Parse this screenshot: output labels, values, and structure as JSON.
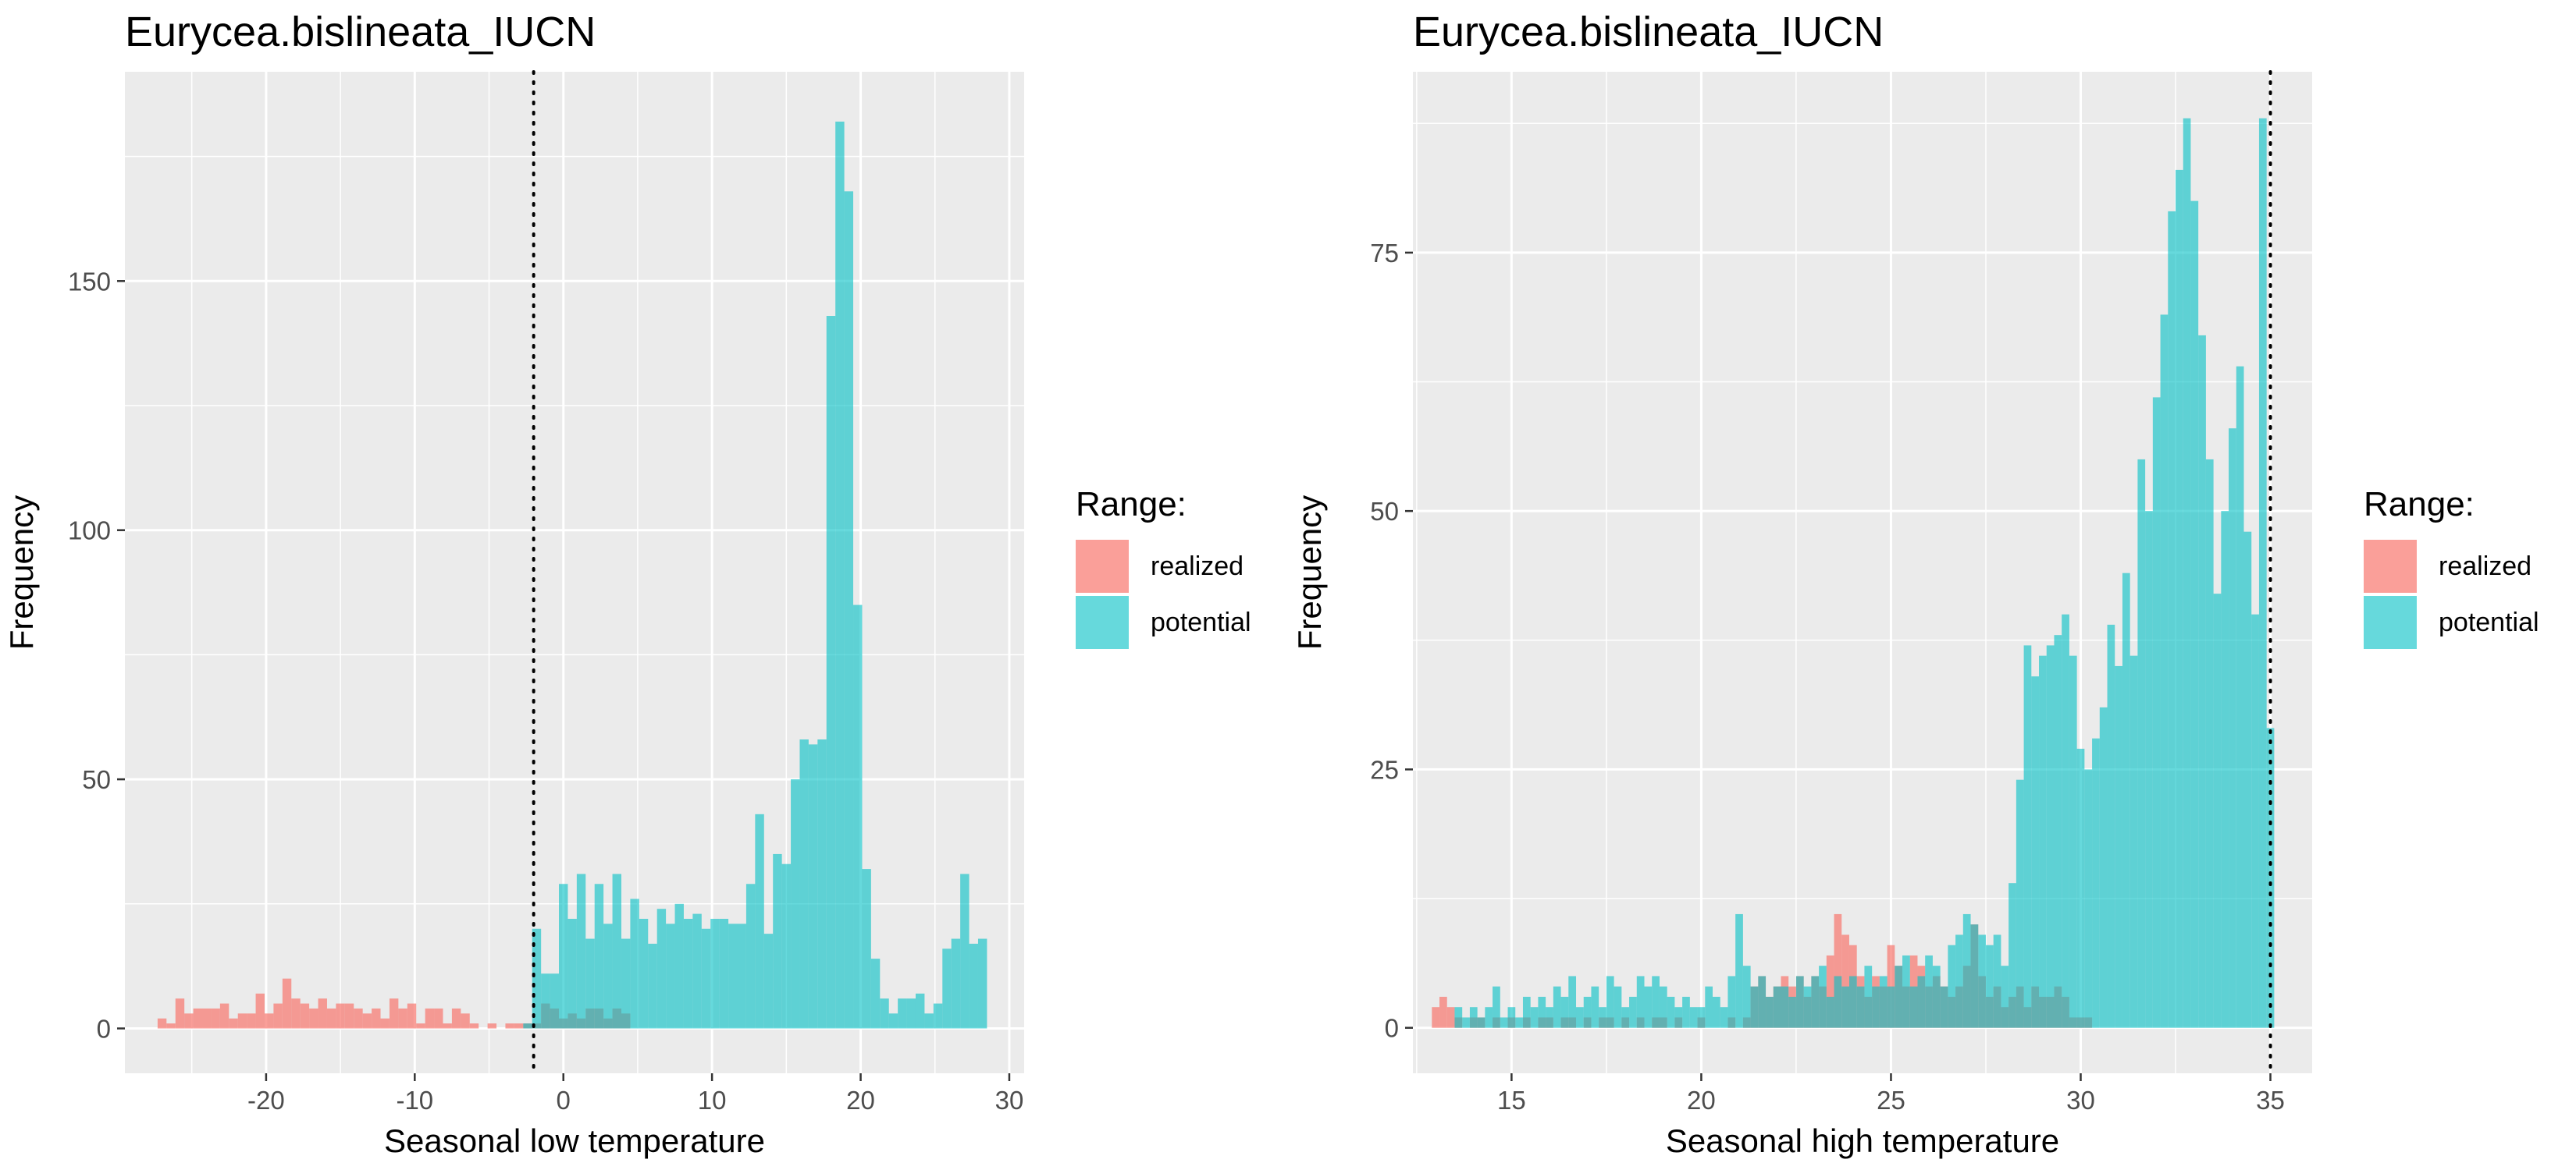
{
  "legend_title": "Range:",
  "colors": {
    "realized": "#F8766D",
    "potential": "#00BFC4",
    "panel_background": "#EBEBEB",
    "grid": "#FFFFFF"
  },
  "chart_data": [
    {
      "type": "bar",
      "title": "Eurycea.bislineata_IUCN",
      "xlabel": "Seasonal low temperature",
      "ylabel": "Frequency",
      "xlim": [
        -29.5,
        31.0
      ],
      "ylim": [
        -9,
        192
      ],
      "xticks": [
        -20,
        -10,
        0,
        10,
        20,
        30
      ],
      "yticks": [
        0,
        50,
        100,
        150
      ],
      "grid": true,
      "legend_position": "right",
      "reference_line_x": -2,
      "bin_width": 0.6,
      "series": [
        {
          "name": "realized",
          "x": [
            -27,
            -26.4,
            -25.8,
            -25.2,
            -24.6,
            -24,
            -23.4,
            -22.8,
            -22.2,
            -21.6,
            -21,
            -20.4,
            -19.8,
            -19.2,
            -18.6,
            -18,
            -17.4,
            -16.8,
            -16.2,
            -15.6,
            -15,
            -14.4,
            -13.8,
            -13.2,
            -12.6,
            -12,
            -11.4,
            -10.8,
            -10.2,
            -9.6,
            -9,
            -8.4,
            -7.8,
            -7.2,
            -6.6,
            -6,
            -5.4,
            -4.8,
            -4.2,
            -3.6,
            -3,
            -2.4,
            -1.8,
            -1.2,
            -0.6,
            0,
            0.6,
            1.2,
            1.8,
            2.4,
            3,
            3.6,
            4.2
          ],
          "values": [
            2,
            1,
            6,
            3,
            4,
            4,
            4,
            5,
            2,
            3,
            3,
            7,
            3,
            5,
            10,
            6,
            5,
            4,
            6,
            4,
            5,
            5,
            4,
            3,
            4,
            2,
            6,
            4,
            5,
            1,
            4,
            4,
            1,
            4,
            3,
            1,
            0,
            1,
            0,
            1,
            1,
            1,
            1,
            5,
            4,
            2,
            3,
            2,
            4,
            4,
            2,
            4,
            3
          ]
        },
        {
          "name": "potential",
          "x": [
            -2.4,
            -1.8,
            -1.2,
            -0.6,
            0,
            0.6,
            1.2,
            1.8,
            2.4,
            3,
            3.6,
            4.2,
            4.8,
            5.4,
            6,
            6.6,
            7.2,
            7.8,
            8.4,
            9,
            9.6,
            10.2,
            10.8,
            11.4,
            12,
            12.6,
            13.2,
            13.8,
            14.4,
            15,
            15.6,
            16.2,
            16.8,
            17.4,
            18,
            18.6,
            19.2,
            19.8,
            20.4,
            21,
            21.6,
            22.2,
            22.8,
            23.4,
            24,
            24.6,
            25.2,
            25.8,
            26.4,
            27,
            27.6,
            28.2
          ],
          "values": [
            1,
            20,
            11,
            11,
            29,
            22,
            31,
            18,
            29,
            21,
            31,
            18,
            26,
            22,
            17,
            24,
            21,
            25,
            22,
            23,
            20,
            22,
            22,
            21,
            21,
            29,
            43,
            19,
            35,
            33,
            50,
            58,
            57,
            58,
            143,
            182,
            168,
            85,
            32,
            14,
            6,
            3,
            6,
            6,
            7,
            3,
            5,
            16,
            18,
            31,
            17,
            18
          ]
        }
      ]
    },
    {
      "type": "bar",
      "title": "Eurycea.bislineata_IUCN",
      "xlabel": "Seasonal high temperature",
      "ylabel": "Frequency",
      "xlim": [
        12.4,
        36.1
      ],
      "ylim": [
        -4.4,
        92.5
      ],
      "xticks": [
        15,
        20,
        25,
        30,
        35
      ],
      "yticks": [
        0,
        25,
        50,
        75
      ],
      "grid": true,
      "legend_position": "right",
      "reference_line_x": 35,
      "bin_width": 0.2,
      "series": [
        {
          "name": "realized",
          "x": [
            13.0,
            13.2,
            13.4,
            13.6,
            13.8,
            14.0,
            14.2,
            14.4,
            14.6,
            14.8,
            15.0,
            15.2,
            15.4,
            15.6,
            15.8,
            16.0,
            16.2,
            16.4,
            16.6,
            16.8,
            17.0,
            17.2,
            17.4,
            17.6,
            17.8,
            18.0,
            18.2,
            18.4,
            18.6,
            18.8,
            19.0,
            19.2,
            19.4,
            19.6,
            19.8,
            20.0,
            20.2,
            20.4,
            20.6,
            20.8,
            21.0,
            21.2,
            21.4,
            21.6,
            21.8,
            22.0,
            22.2,
            22.4,
            22.6,
            22.8,
            23.0,
            23.2,
            23.4,
            23.6,
            23.8,
            24.0,
            24.2,
            24.4,
            24.6,
            24.8,
            25.0,
            25.2,
            25.4,
            25.6,
            25.8,
            26.0,
            26.2,
            26.4,
            26.6,
            26.8,
            27.0,
            27.2,
            27.4,
            27.6,
            27.8,
            28.0,
            28.2,
            28.4,
            28.6,
            28.8,
            29.0,
            29.2,
            29.4,
            29.6,
            29.8,
            30.0,
            30.2
          ],
          "values": [
            2,
            3,
            2,
            1,
            0,
            1,
            1,
            0,
            1,
            0,
            1,
            0,
            1,
            0,
            1,
            1,
            0,
            1,
            1,
            0,
            1,
            0,
            1,
            1,
            0,
            1,
            0,
            1,
            0,
            1,
            1,
            0,
            1,
            0,
            0,
            1,
            0,
            0,
            0,
            1,
            0,
            1,
            4,
            5,
            3,
            4,
            5,
            4,
            5,
            3,
            5,
            4,
            7,
            11,
            9,
            8,
            5,
            3,
            5,
            4,
            8,
            6,
            4,
            7,
            6,
            4,
            5,
            4,
            3,
            4,
            6,
            10,
            5,
            3,
            4,
            2,
            3,
            4,
            2,
            4,
            3,
            3,
            4,
            3,
            1,
            1,
            1
          ]
        },
        {
          "name": "potential",
          "x": [
            13.6,
            13.8,
            14.0,
            14.2,
            14.4,
            14.6,
            14.8,
            15.0,
            15.2,
            15.4,
            15.6,
            15.8,
            16.0,
            16.2,
            16.4,
            16.6,
            16.8,
            17.0,
            17.2,
            17.4,
            17.6,
            17.8,
            18.0,
            18.2,
            18.4,
            18.6,
            18.8,
            19.0,
            19.2,
            19.4,
            19.6,
            19.8,
            20.0,
            20.2,
            20.4,
            20.6,
            20.8,
            21.0,
            21.2,
            21.4,
            21.6,
            21.8,
            22.0,
            22.2,
            22.4,
            22.6,
            22.8,
            23.0,
            23.2,
            23.4,
            23.6,
            23.8,
            24.0,
            24.2,
            24.4,
            24.6,
            24.8,
            25.0,
            25.2,
            25.4,
            25.6,
            25.8,
            26.0,
            26.2,
            26.4,
            26.6,
            26.8,
            27.0,
            27.2,
            27.4,
            27.6,
            27.8,
            28.0,
            28.2,
            28.4,
            28.6,
            28.8,
            29.0,
            29.2,
            29.4,
            29.6,
            29.8,
            30.0,
            30.2,
            30.4,
            30.6,
            30.8,
            31.0,
            31.2,
            31.4,
            31.6,
            31.8,
            32.0,
            32.2,
            32.4,
            32.6,
            32.8,
            33.0,
            33.2,
            33.4,
            33.6,
            33.8,
            34.0,
            34.2,
            34.4,
            34.6,
            34.8,
            35.0
          ],
          "values": [
            2,
            1,
            2,
            1,
            2,
            4,
            1,
            2,
            1,
            3,
            2,
            3,
            2,
            4,
            3,
            5,
            2,
            3,
            4,
            2,
            5,
            4,
            2,
            3,
            5,
            4,
            5,
            4,
            3,
            2,
            3,
            2,
            2,
            4,
            3,
            2,
            5,
            11,
            6,
            4,
            5,
            3,
            4,
            4,
            3,
            5,
            4,
            5,
            6,
            3,
            5,
            4,
            5,
            4,
            6,
            4,
            5,
            4,
            6,
            7,
            4,
            5,
            7,
            6,
            4,
            8,
            9,
            11,
            10,
            9,
            8,
            9,
            6,
            14,
            24,
            37,
            34,
            36,
            37,
            38,
            40,
            36,
            27,
            25,
            28,
            31,
            39,
            35,
            44,
            36,
            55,
            50,
            61,
            69,
            79,
            83,
            88,
            80,
            67,
            55,
            42,
            50,
            58,
            64,
            48,
            40,
            88,
            29
          ]
        }
      ]
    }
  ]
}
